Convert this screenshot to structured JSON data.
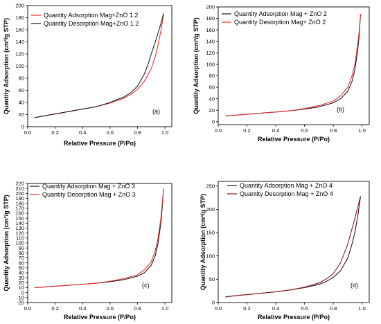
{
  "chart_data": [
    {
      "type": "line",
      "panel_label": "(a)",
      "xlabel": "Relative Pressure (P/Po)",
      "ylabel": "Quantity Adsorption (cm³/g STP)",
      "xlim": [
        0.0,
        1.05
      ],
      "ylim": [
        0,
        200
      ],
      "xticks": [
        "0.0",
        "0.2",
        "0.4",
        "0.6",
        "0.8",
        "1.0"
      ],
      "yticks": [
        "0",
        "20",
        "40",
        "60",
        "80",
        "100",
        "120",
        "140",
        "160",
        "180",
        "200"
      ],
      "legend_position": "top-left",
      "series": [
        {
          "name": "Quantity Adsorption Mag+ZnO 1.2",
          "color": "#e8302e",
          "x": [
            0.05,
            0.1,
            0.2,
            0.3,
            0.4,
            0.5,
            0.6,
            0.7,
            0.75,
            0.8,
            0.85,
            0.9,
            0.93,
            0.95,
            0.97,
            0.99
          ],
          "y": [
            15,
            17,
            21,
            25,
            29,
            33,
            39,
            47,
            53,
            62,
            75,
            96,
            116,
            135,
            158,
            185
          ]
        },
        {
          "name": "Quantity Desorption Mag+ZnO 1.2",
          "color": "#1a1a1a",
          "x": [
            0.05,
            0.1,
            0.2,
            0.3,
            0.4,
            0.5,
            0.6,
            0.7,
            0.75,
            0.8,
            0.85,
            0.88,
            0.9,
            0.93,
            0.95,
            0.97,
            0.99
          ],
          "y": [
            15,
            17,
            21,
            25,
            29,
            33,
            40,
            49,
            56,
            67,
            87,
            105,
            120,
            140,
            155,
            170,
            187
          ]
        }
      ]
    },
    {
      "type": "line",
      "panel_label": "(b)",
      "xlabel": "Relative Pressure (P/Po)",
      "ylabel": "Quantity Adsorption (cm³/g STP)",
      "xlim": [
        0.0,
        1.05
      ],
      "ylim": [
        -5,
        200
      ],
      "xticks": [
        "0.0",
        "0.2",
        "0.4",
        "0.6",
        "0.8",
        "1.0"
      ],
      "yticks": [
        "0",
        "20",
        "40",
        "60",
        "80",
        "100",
        "120",
        "140",
        "160",
        "180",
        "200"
      ],
      "legend_position": "top-left",
      "series": [
        {
          "name": "Quantity Adsorption Mag + ZnO 2",
          "color": "#1a1a1a",
          "x": [
            0.05,
            0.1,
            0.2,
            0.3,
            0.4,
            0.5,
            0.6,
            0.7,
            0.8,
            0.85,
            0.9,
            0.93,
            0.95,
            0.97,
            0.98,
            0.99
          ],
          "y": [
            10,
            11,
            13,
            15,
            17,
            19,
            22,
            26,
            33,
            40,
            53,
            70,
            90,
            125,
            150,
            188
          ]
        },
        {
          "name": "Quantity Desorption Mag+ ZnO 2",
          "color": "#e8302e",
          "x": [
            0.05,
            0.1,
            0.2,
            0.3,
            0.4,
            0.5,
            0.6,
            0.7,
            0.8,
            0.85,
            0.9,
            0.93,
            0.95,
            0.97,
            0.98,
            0.99
          ],
          "y": [
            10,
            11,
            13,
            15,
            17,
            19,
            23,
            28,
            36,
            45,
            60,
            80,
            100,
            135,
            158,
            188
          ]
        }
      ]
    },
    {
      "type": "line",
      "panel_label": "(c)",
      "xlabel": "Relative Pressure (P/Po)",
      "ylabel": "Quantity Adsorption (cm³/g STP)",
      "xlim": [
        0.0,
        1.05
      ],
      "ylim": [
        -20,
        220
      ],
      "xticks": [
        "0.0",
        "0.2",
        "0.4",
        "0.6",
        "0.8",
        "1.0"
      ],
      "yticks": [
        "-20",
        "-10",
        "0",
        "10",
        "20",
        "30",
        "40",
        "50",
        "60",
        "70",
        "80",
        "90",
        "100",
        "110",
        "120",
        "130",
        "140",
        "150",
        "160",
        "170",
        "180",
        "190",
        "200",
        "210",
        "220"
      ],
      "legend_position": "top-left",
      "series": [
        {
          "name": "Quantity Adsorption Mag + ZnO 3",
          "color": "#1a1a1a",
          "x": [
            0.05,
            0.1,
            0.2,
            0.3,
            0.4,
            0.5,
            0.6,
            0.7,
            0.8,
            0.85,
            0.9,
            0.93,
            0.95,
            0.97,
            0.98,
            0.99
          ],
          "y": [
            10,
            11,
            13,
            15,
            17,
            19,
            22,
            26,
            33,
            40,
            55,
            75,
            100,
            140,
            170,
            210
          ]
        },
        {
          "name": "Quantity Desorption Mag + ZnO 3",
          "color": "#e8302e",
          "x": [
            0.05,
            0.1,
            0.2,
            0.3,
            0.4,
            0.5,
            0.6,
            0.7,
            0.8,
            0.85,
            0.9,
            0.93,
            0.95,
            0.97,
            0.98,
            0.99
          ],
          "y": [
            10,
            11,
            13,
            15,
            17,
            19,
            23,
            28,
            36,
            46,
            62,
            85,
            110,
            150,
            178,
            210
          ]
        }
      ]
    },
    {
      "type": "line",
      "panel_label": "(d)",
      "xlabel": "Relative Pressure (P/Po)",
      "ylabel": "Quantity Adsorption (cm³/g STP)",
      "xlim": [
        0.0,
        1.05
      ],
      "ylim": [
        0,
        260
      ],
      "xticks": [
        "0.0",
        "0.2",
        "0.4",
        "0.6",
        "0.8",
        "1.0"
      ],
      "yticks": [
        "0",
        "50",
        "100",
        "150",
        "200",
        "250"
      ],
      "legend_position": "top-left",
      "series": [
        {
          "name": "Quantity Adsorption Mag + ZnO 4",
          "color": "#1a1a1a",
          "x": [
            0.05,
            0.1,
            0.2,
            0.3,
            0.4,
            0.5,
            0.6,
            0.7,
            0.75,
            0.8,
            0.85,
            0.9,
            0.93,
            0.95,
            0.97,
            0.99
          ],
          "y": [
            12,
            14,
            17,
            20,
            23,
            27,
            32,
            39,
            45,
            54,
            68,
            95,
            125,
            150,
            185,
            228
          ]
        },
        {
          "name": "Quantity Desorption Mag + ZnO 4",
          "color": "#8b1a1a",
          "x": [
            0.05,
            0.1,
            0.2,
            0.3,
            0.4,
            0.5,
            0.6,
            0.7,
            0.75,
            0.8,
            0.85,
            0.9,
            0.93,
            0.95,
            0.97,
            0.99
          ],
          "y": [
            12,
            14,
            17,
            20,
            23,
            27,
            33,
            42,
            50,
            62,
            85,
            125,
            158,
            180,
            205,
            228
          ]
        }
      ]
    }
  ]
}
